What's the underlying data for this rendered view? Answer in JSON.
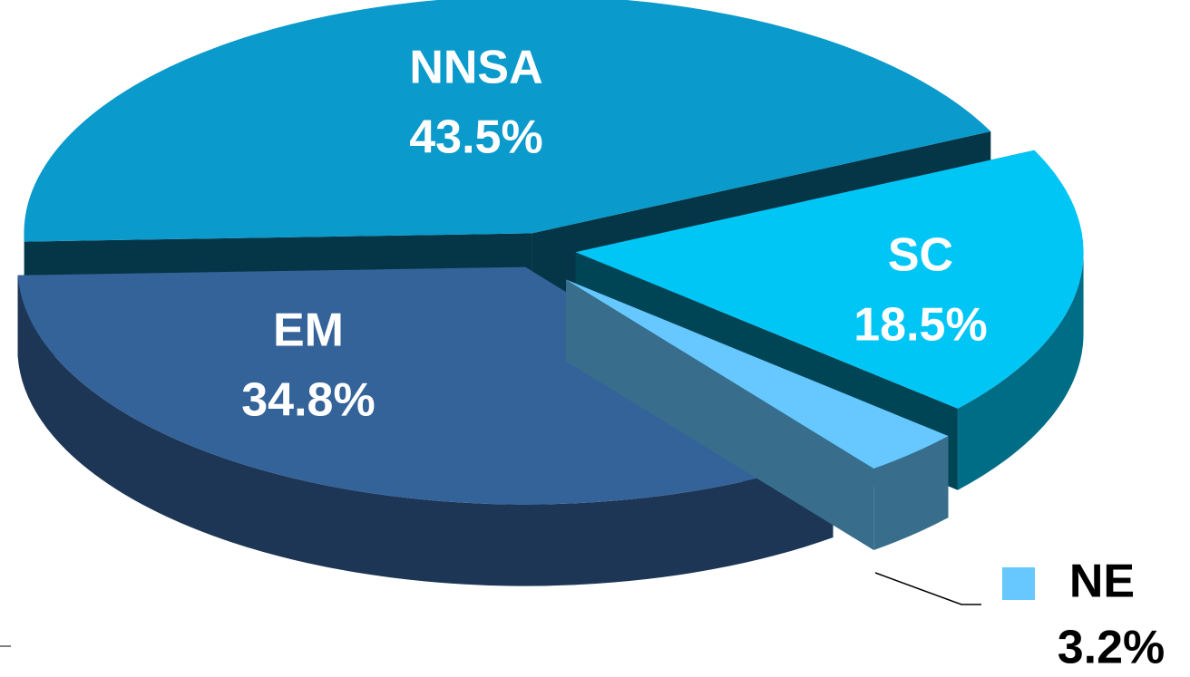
{
  "chart_data": {
    "type": "pie",
    "categories": [
      "NNSA",
      "SC",
      "NE",
      "EM"
    ],
    "values": [
      43.5,
      18.5,
      3.2,
      34.8
    ],
    "value_labels": [
      "43.5%",
      "18.5%",
      "3.2%",
      "34.8%"
    ],
    "colors": [
      "#0a9acb",
      "#00c6f6",
      "#66c8fe",
      "#34639a"
    ]
  }
}
